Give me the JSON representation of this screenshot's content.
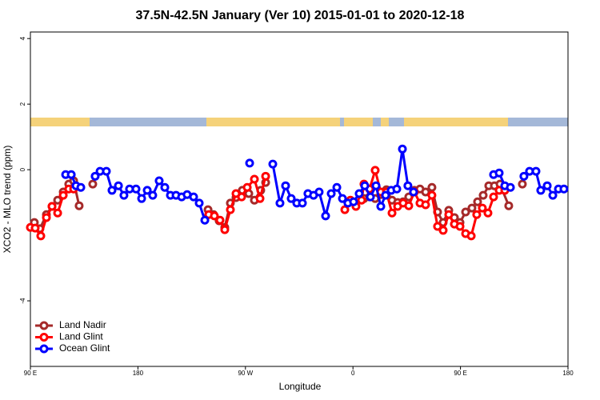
{
  "chart_data": {
    "type": "line",
    "title": "37.5N-42.5N January (Ver 10)   2015-01-01 to 2020-12-18",
    "x_label": "Longitude",
    "y_label": "XCO2 - MLO trend (ppm)",
    "xlim": [
      90,
      540
    ],
    "ylim": [
      -6,
      4.2
    ],
    "xticks": [
      {
        "value": 90,
        "label": "90 E"
      },
      {
        "value": 180,
        "label": "180"
      },
      {
        "value": 270,
        "label": "90 W"
      },
      {
        "value": 360,
        "label": "0"
      },
      {
        "value": 450,
        "label": "90 E"
      },
      {
        "value": 540,
        "label": "180"
      }
    ],
    "yticks": [
      -4,
      0,
      2,
      4
    ],
    "grid": false,
    "legend": "bottom-left",
    "series": [
      {
        "name": "Land Nadir",
        "color": "#a52a2a",
        "x": [
          93.3,
          98.0,
          103.4,
          108.1,
          112.8,
          117.5,
          122.1,
          126.2,
          130.8,
          null,
          142.2,
          null,
          238.7,
          243.3,
          248.0,
          252.7,
          257.4,
          262.1,
          267.4,
          272.8,
          277.5,
          282.8,
          286.9,
          null,
          369.2,
          373.9,
          378.6,
          383.3,
          388.0,
          392.7,
          397.4,
          402.0,
          406.7,
          411.4,
          416.1,
          420.8,
          426.1,
          430.8,
          435.5,
          440.2,
          444.9,
          449.6,
          454.3,
          459.6,
          464.3,
          469.0,
          473.7,
          478.4,
          483.1,
          490.4,
          null,
          501.8
        ],
        "values": [
          -1.61,
          -1.8,
          -1.37,
          -1.12,
          -0.93,
          -0.68,
          -0.44,
          -0.34,
          -1.1,
          null,
          -0.44,
          null,
          -1.22,
          -1.37,
          -1.56,
          -1.76,
          -1.02,
          -0.85,
          -0.63,
          -0.73,
          -0.93,
          -0.63,
          -0.39,
          null,
          -0.88,
          -0.83,
          -0.88,
          -0.76,
          -0.61,
          -0.93,
          -1.0,
          -0.98,
          -0.83,
          -0.63,
          -0.59,
          -0.68,
          -0.54,
          -1.29,
          -1.61,
          -1.24,
          -1.46,
          -1.61,
          -1.29,
          -1.17,
          -0.98,
          -0.78,
          -0.49,
          -0.49,
          -0.44,
          -1.1,
          null,
          -0.44
        ]
      },
      {
        "name": "Land Glint",
        "color": "#ff0000",
        "x": [
          90,
          94.0,
          98.7,
          103.4,
          108.1,
          112.8,
          117.5,
          122.1,
          126.2,
          null,
          239.3,
          244.0,
          248.7,
          252.7,
          257.4,
          262.1,
          266.8,
          271.5,
          277.5,
          282.2,
          286.9,
          null,
          353.2,
          357.9,
          362.5,
          367.2,
          369.2,
          373.9,
          378.6,
          383.3,
          388.0,
          392.7,
          397.4,
          402.0,
          406.7,
          411.4,
          416.1,
          420.8,
          426.1,
          430.8,
          435.5,
          440.2,
          444.9,
          449.6,
          454.3,
          459.0,
          463.6,
          468.3,
          473.0,
          477.7,
          482.4,
          487.1
        ],
        "values": [
          -1.76,
          -1.78,
          -2.02,
          -1.46,
          -1.12,
          -1.32,
          -0.78,
          -0.59,
          -0.59,
          null,
          -1.37,
          -1.41,
          -1.54,
          -1.83,
          -1.22,
          -0.73,
          -0.83,
          -0.54,
          -0.29,
          -0.88,
          -0.2,
          null,
          -1.22,
          -0.93,
          -1.12,
          -0.93,
          -0.44,
          -0.59,
          -0.02,
          -0.68,
          -0.68,
          -1.32,
          -1.12,
          -1.02,
          -1.1,
          -0.68,
          -1.02,
          -1.07,
          -0.78,
          -1.73,
          -1.85,
          -1.37,
          -1.66,
          -1.73,
          -1.95,
          -2.02,
          -1.37,
          -1.17,
          -1.32,
          -0.83,
          -0.63,
          -0.63
        ]
      },
      {
        "name": "Ocean Glint",
        "color": "#0000ff",
        "x": [
          119.5,
          124.2,
          128.2,
          132.2,
          null,
          144.2,
          148.3,
          153.6,
          158.3,
          163.7,
          168.3,
          173.0,
          178.4,
          183.1,
          187.8,
          192.4,
          197.8,
          202.5,
          207.2,
          211.9,
          216.6,
          221.2,
          226.6,
          231.3,
          236.0,
          null,
          273.5,
          null,
          292.9,
          298.9,
          303.6,
          308.3,
          313.0,
          317.7,
          322.3,
          327.0,
          331.7,
          337.1,
          341.8,
          346.5,
          351.2,
          355.8,
          360.5,
          365.2,
          369.9,
          374.6,
          379.3,
          383.3,
          387.3,
          392.0,
          396.7,
          401.4,
          406.0,
          410.7,
          null,
          477.7,
          482.4,
          487.1,
          491.8,
          null,
          503.1,
          507.8,
          513.2,
          517.2,
          522.6,
          527.3,
          532.0,
          536.6
        ],
        "values": [
          -0.15,
          -0.15,
          -0.49,
          -0.54,
          null,
          -0.2,
          -0.05,
          -0.05,
          -0.63,
          -0.49,
          -0.78,
          -0.59,
          -0.59,
          -0.88,
          -0.63,
          -0.78,
          -0.34,
          -0.54,
          -0.78,
          -0.78,
          -0.83,
          -0.76,
          -0.83,
          -1.02,
          -1.54,
          null,
          0.2,
          null,
          0.17,
          -1.02,
          -0.49,
          -0.88,
          -1.02,
          -1.02,
          -0.73,
          -0.78,
          -0.68,
          -1.41,
          -0.73,
          -0.54,
          -0.88,
          -1.02,
          -0.98,
          -0.73,
          -0.49,
          -0.83,
          -0.49,
          -1.12,
          -0.78,
          -0.63,
          -0.59,
          0.63,
          -0.49,
          -0.68,
          null,
          -0.15,
          -0.1,
          -0.49,
          -0.54,
          null,
          -0.2,
          -0.05,
          -0.05,
          -0.63,
          -0.49,
          -0.78,
          -0.59,
          -0.59
        ]
      }
    ]
  }
}
